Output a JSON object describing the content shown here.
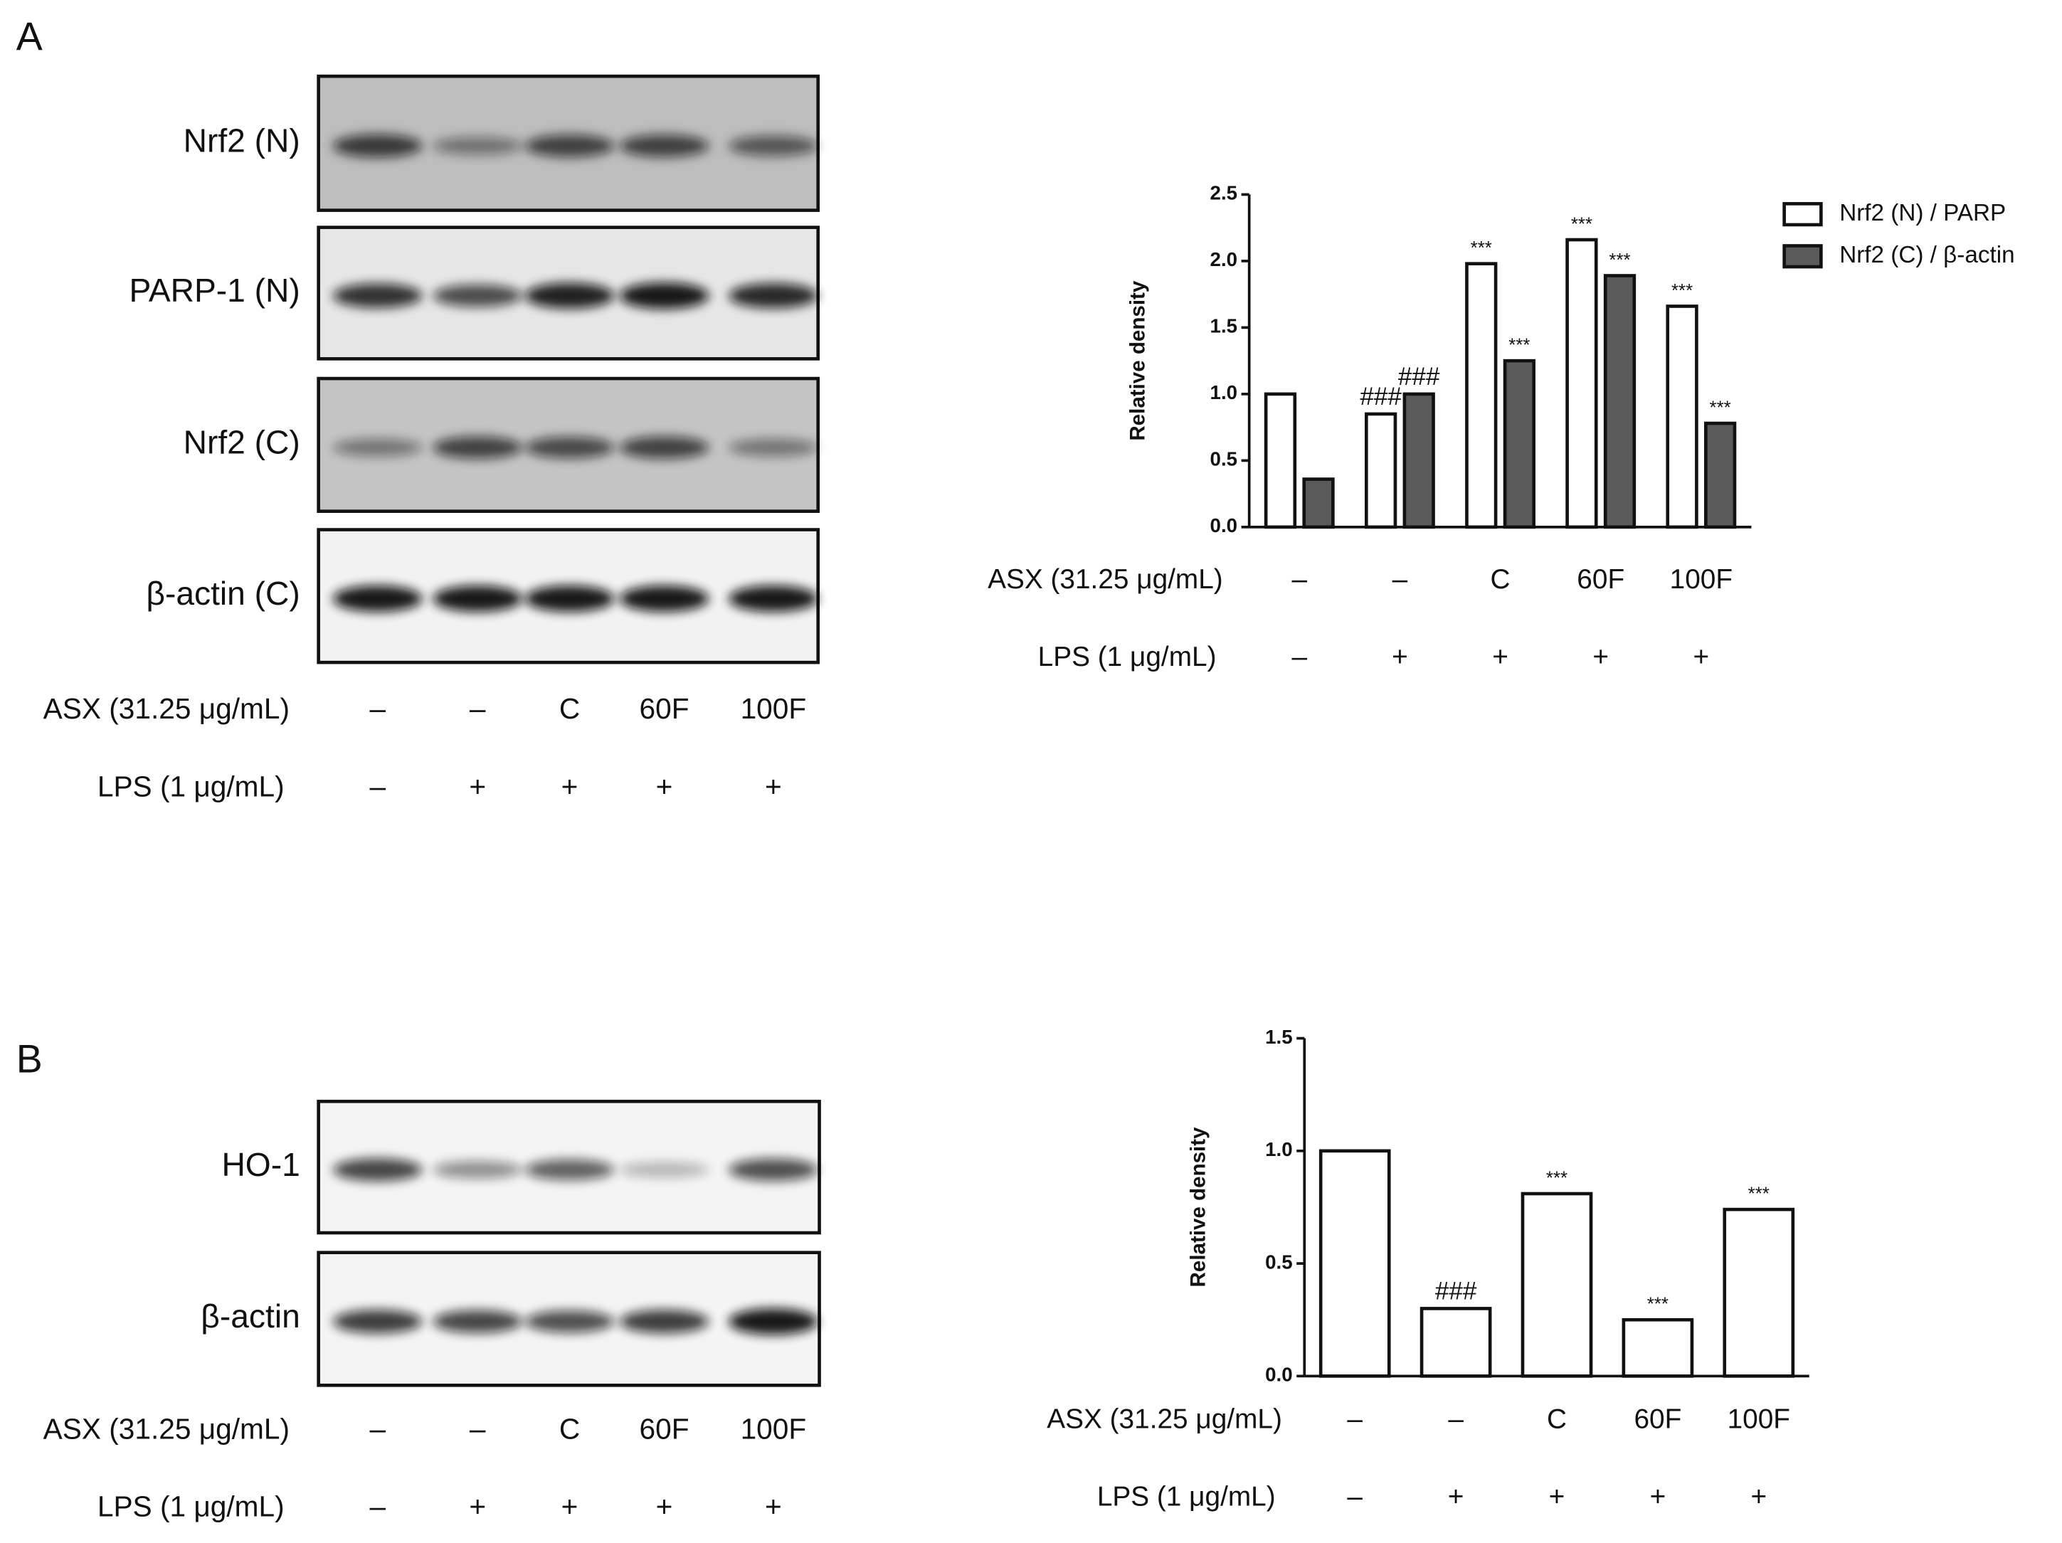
{
  "panel_labels": [
    "A",
    "B"
  ],
  "blots": [
    {
      "rows": [
        "Nrf2 (N)",
        "PARP-1 (N)",
        "Nrf2 (C)",
        "β-actin (C)"
      ],
      "asx_label": "ASX (31.25 μg/mL)",
      "asx": [
        "–",
        "–",
        "C",
        "60F",
        "100F"
      ],
      "lps_label": "LPS (1 μg/mL)",
      "lps": [
        "–",
        "+",
        "+",
        "+",
        "+"
      ]
    },
    {
      "rows": [
        "HO-1",
        "β-actin"
      ],
      "asx_label": "ASX (31.25 μg/mL)",
      "asx": [
        "–",
        "–",
        "C",
        "60F",
        "100F"
      ],
      "lps_label": "LPS (1 μg/mL)",
      "lps": [
        "–",
        "+",
        "+",
        "+",
        "+"
      ]
    }
  ],
  "chart_data": [
    {
      "type": "bar",
      "y_label": "Relative density",
      "category_title": "ASX (31.25 μg/mL)",
      "categories": [
        "–",
        "–",
        "C",
        "60F",
        "100F"
      ],
      "secondary_title": "LPS (1 μg/mL)",
      "secondary_categories": [
        "–",
        "+",
        "+",
        "+",
        "+"
      ],
      "series": [
        {
          "name": "Nrf2 (N) / PARP",
          "color": "#ffffff",
          "values": [
            1.0,
            0.85,
            1.98,
            2.16,
            1.66
          ],
          "annotations": [
            null,
            "###",
            "***",
            "***",
            "***"
          ]
        },
        {
          "name": "Nrf2 (C) / β-actin",
          "color": "#5a5a5a",
          "values": [
            0.36,
            1.0,
            1.25,
            1.89,
            0.78
          ],
          "annotations": [
            null,
            "###",
            "***",
            "***",
            "***"
          ]
        }
      ],
      "ylim": [
        0,
        2.5
      ],
      "yticks": [
        {
          "value": 0,
          "label": "0.0"
        },
        {
          "value": 0.5,
          "label": "0.5"
        },
        {
          "value": 1,
          "label": "1.0"
        },
        {
          "value": 1.5,
          "label": "1.5"
        },
        {
          "value": 2,
          "label": "2.0"
        },
        {
          "value": 2.5,
          "label": "2.5"
        }
      ],
      "legend": "top-right"
    },
    {
      "type": "bar",
      "y_label": "Relative density",
      "category_title": "ASX (31.25 μg/mL)",
      "categories": [
        "–",
        "–",
        "C",
        "60F",
        "100F"
      ],
      "secondary_title": "LPS (1 μg/mL)",
      "secondary_categories": [
        "–",
        "+",
        "+",
        "+",
        "+"
      ],
      "series": [
        {
          "color": "#ffffff",
          "values": [
            1.0,
            0.3,
            0.81,
            0.25,
            0.74
          ],
          "annotations": [
            null,
            "###",
            "***",
            "***",
            "***"
          ]
        }
      ],
      "ylim": [
        0,
        1.5
      ],
      "yticks": [
        {
          "value": 0,
          "label": "0.0"
        },
        {
          "value": 0.5,
          "label": "0.5"
        },
        {
          "value": 1,
          "label": "1.0"
        },
        {
          "value": 1.5,
          "label": "1.5"
        }
      ]
    }
  ]
}
